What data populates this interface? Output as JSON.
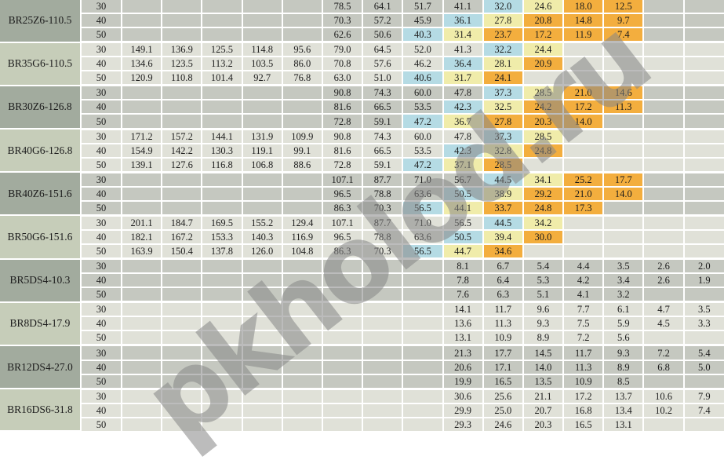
{
  "watermark": "pkholod.ru",
  "colors": {
    "row_dark": "#c5c8c0",
    "row_light": "#e0e1d8",
    "model_dark": "#a2ab9e",
    "model_light": "#c6cdb9",
    "cell_blue": "#b5dbe4",
    "cell_yellow": "#f0ecaa",
    "cell_orange": "#f3ae3e",
    "border": "#ffffff",
    "text": "#1c1c1c",
    "watermark_color": "#878787"
  },
  "table": {
    "num_data_columns": 15,
    "temp_values": [
      "30",
      "40",
      "50"
    ],
    "groups": [
      {
        "model": "BR25Z6-110.5",
        "shade": "dark",
        "rows": [
          {
            "temp": "30",
            "cells": {
              "6": "78.5",
              "7": "64.1",
              "8": "51.7",
              "9": "41.1",
              "10": "32.0",
              "11": "24.6",
              "12": "18.0",
              "13": "12.5"
            },
            "colors": {
              "10": "blue",
              "11": "yellow",
              "12": "orange",
              "13": "orange"
            }
          },
          {
            "temp": "40",
            "cells": {
              "6": "70.3",
              "7": "57.2",
              "8": "45.9",
              "9": "36.1",
              "10": "27.8",
              "11": "20.8",
              "12": "14.8",
              "13": "9.7"
            },
            "colors": {
              "9": "blue",
              "10": "yellow",
              "11": "orange",
              "12": "orange",
              "13": "orange"
            }
          },
          {
            "temp": "50",
            "cells": {
              "6": "62.6",
              "7": "50.6",
              "8": "40.3",
              "9": "31.4",
              "10": "23.7",
              "11": "17.2",
              "12": "11.9",
              "13": "7.4"
            },
            "colors": {
              "8": "blue",
              "9": "yellow",
              "10": "orange",
              "11": "orange",
              "12": "orange",
              "13": "orange"
            }
          }
        ]
      },
      {
        "model": "BR35G6-110.5",
        "shade": "light",
        "rows": [
          {
            "temp": "30",
            "cells": {
              "1": "149.1",
              "2": "136.9",
              "3": "125.5",
              "4": "114.8",
              "5": "95.6",
              "6": "79.0",
              "7": "64.5",
              "8": "52.0",
              "9": "41.3",
              "10": "32.2",
              "11": "24.4"
            },
            "colors": {
              "10": "blue",
              "11": "yellow"
            }
          },
          {
            "temp": "40",
            "cells": {
              "1": "134.6",
              "2": "123.5",
              "3": "113.2",
              "4": "103.5",
              "5": "86.0",
              "6": "70.8",
              "7": "57.6",
              "8": "46.2",
              "9": "36.4",
              "10": "28.1",
              "11": "20.9"
            },
            "colors": {
              "9": "blue",
              "10": "yellow",
              "11": "orange"
            }
          },
          {
            "temp": "50",
            "cells": {
              "1": "120.9",
              "2": "110.8",
              "3": "101.4",
              "4": "92.7",
              "5": "76.8",
              "6": "63.0",
              "7": "51.0",
              "8": "40.6",
              "9": "31.7",
              "10": "24.1"
            },
            "colors": {
              "8": "blue",
              "9": "yellow",
              "10": "orange"
            }
          }
        ]
      },
      {
        "model": "BR30Z6-126.8",
        "shade": "dark",
        "rows": [
          {
            "temp": "30",
            "cells": {
              "6": "90.8",
              "7": "74.3",
              "8": "60.0",
              "9": "47.8",
              "10": "37.3",
              "11": "28.5",
              "12": "21.0",
              "13": "14.6"
            },
            "colors": {
              "10": "blue",
              "11": "yellow",
              "12": "orange",
              "13": "orange"
            }
          },
          {
            "temp": "40",
            "cells": {
              "6": "81.6",
              "7": "66.5",
              "8": "53.5",
              "9": "42.3",
              "10": "32.5",
              "11": "24.2",
              "12": "17.2",
              "13": "11.3"
            },
            "colors": {
              "9": "blue",
              "10": "yellow",
              "11": "orange",
              "12": "orange",
              "13": "orange"
            }
          },
          {
            "temp": "50",
            "cells": {
              "6": "72.8",
              "7": "59.1",
              "8": "47.2",
              "9": "36.7",
              "10": "27.8",
              "11": "20.3",
              "12": "14.0"
            },
            "colors": {
              "8": "blue",
              "9": "yellow",
              "10": "orange",
              "11": "orange",
              "12": "orange"
            }
          }
        ]
      },
      {
        "model": "BR40G6-126.8",
        "shade": "light",
        "rows": [
          {
            "temp": "30",
            "cells": {
              "1": "171.2",
              "2": "157.2",
              "3": "144.1",
              "4": "131.9",
              "5": "109.9",
              "6": "90.8",
              "7": "74.3",
              "8": "60.0",
              "9": "47.8",
              "10": "37.3",
              "11": "28.5"
            },
            "colors": {
              "10": "blue",
              "11": "yellow"
            }
          },
          {
            "temp": "40",
            "cells": {
              "1": "154.9",
              "2": "142.2",
              "3": "130.3",
              "4": "119.1",
              "5": "99.1",
              "6": "81.6",
              "7": "66.5",
              "8": "53.5",
              "9": "42.3",
              "10": "32.8",
              "11": "24.8"
            },
            "colors": {
              "9": "blue",
              "10": "yellow",
              "11": "orange"
            }
          },
          {
            "temp": "50",
            "cells": {
              "1": "139.1",
              "2": "127.6",
              "3": "116.8",
              "4": "106.8",
              "5": "88.6",
              "6": "72.8",
              "7": "59.1",
              "8": "47.2",
              "9": "37.1",
              "10": "28.5"
            },
            "colors": {
              "8": "blue",
              "9": "yellow",
              "10": "orange"
            }
          }
        ]
      },
      {
        "model": "BR40Z6-151.6",
        "shade": "dark",
        "rows": [
          {
            "temp": "30",
            "cells": {
              "6": "107.1",
              "7": "87.7",
              "8": "71.0",
              "9": "56.7",
              "10": "44.5",
              "11": "34.1",
              "12": "25.2",
              "13": "17.7"
            },
            "colors": {
              "10": "blue",
              "11": "yellow",
              "12": "orange",
              "13": "orange"
            }
          },
          {
            "temp": "40",
            "cells": {
              "6": "96.5",
              "7": "78.8",
              "8": "63.6",
              "9": "50.5",
              "10": "38.9",
              "11": "29.2",
              "12": "21.0",
              "13": "14.0"
            },
            "colors": {
              "9": "blue",
              "10": "yellow",
              "11": "orange",
              "12": "orange",
              "13": "orange"
            }
          },
          {
            "temp": "50",
            "cells": {
              "6": "86.3",
              "7": "70.3",
              "8": "56.5",
              "9": "44.1",
              "10": "33.7",
              "11": "24.8",
              "12": "17.3"
            },
            "colors": {
              "8": "blue",
              "9": "yellow",
              "10": "orange",
              "11": "orange",
              "12": "orange"
            }
          }
        ]
      },
      {
        "model": "BR50G6-151.6",
        "shade": "light",
        "rows": [
          {
            "temp": "30",
            "cells": {
              "1": "201.1",
              "2": "184.7",
              "3": "169.5",
              "4": "155.2",
              "5": "129.4",
              "6": "107.1",
              "7": "87.7",
              "8": "71.0",
              "9": "56.5",
              "10": "44.5",
              "11": "34.2"
            },
            "colors": {
              "10": "blue",
              "11": "yellow"
            }
          },
          {
            "temp": "40",
            "cells": {
              "1": "182.1",
              "2": "167.2",
              "3": "153.3",
              "4": "140.3",
              "5": "116.9",
              "6": "96.5",
              "7": "78.8",
              "8": "63.6",
              "9": "50.5",
              "10": "39.4",
              "11": "30.0"
            },
            "colors": {
              "9": "blue",
              "10": "yellow",
              "11": "orange"
            }
          },
          {
            "temp": "50",
            "cells": {
              "1": "163.9",
              "2": "150.4",
              "3": "137.8",
              "4": "126.0",
              "5": "104.8",
              "6": "86.3",
              "7": "70.3",
              "8": "56.5",
              "9": "44.7",
              "10": "34.6"
            },
            "colors": {
              "8": "blue",
              "9": "yellow",
              "10": "orange"
            }
          }
        ]
      },
      {
        "model": "BR5DS4-10.3",
        "shade": "dark",
        "rows": [
          {
            "temp": "30",
            "cells": {
              "9": "8.1",
              "10": "6.7",
              "11": "5.4",
              "12": "4.4",
              "13": "3.5",
              "14": "2.6",
              "15": "2.0"
            },
            "colors": {}
          },
          {
            "temp": "40",
            "cells": {
              "9": "7.8",
              "10": "6.4",
              "11": "5.3",
              "12": "4.2",
              "13": "3.4",
              "14": "2.6",
              "15": "1.9"
            },
            "colors": {}
          },
          {
            "temp": "50",
            "cells": {
              "9": "7.6",
              "10": "6.3",
              "11": "5.1",
              "12": "4.1",
              "13": "3.2"
            },
            "colors": {}
          }
        ]
      },
      {
        "model": "BR8DS4-17.9",
        "shade": "light",
        "rows": [
          {
            "temp": "30",
            "cells": {
              "9": "14.1",
              "10": "11.7",
              "11": "9.6",
              "12": "7.7",
              "13": "6.1",
              "14": "4.7",
              "15": "3.5"
            },
            "colors": {}
          },
          {
            "temp": "40",
            "cells": {
              "9": "13.6",
              "10": "11.3",
              "11": "9.3",
              "12": "7.5",
              "13": "5.9",
              "14": "4.5",
              "15": "3.3"
            },
            "colors": {}
          },
          {
            "temp": "50",
            "cells": {
              "9": "13.1",
              "10": "10.9",
              "11": "8.9",
              "12": "7.2",
              "13": "5.6"
            },
            "colors": {}
          }
        ]
      },
      {
        "model": "BR12DS4-27.0",
        "shade": "dark",
        "rows": [
          {
            "temp": "30",
            "cells": {
              "9": "21.3",
              "10": "17.7",
              "11": "14.5",
              "12": "11.7",
              "13": "9.3",
              "14": "7.2",
              "15": "5.4"
            },
            "colors": {}
          },
          {
            "temp": "40",
            "cells": {
              "9": "20.6",
              "10": "17.1",
              "11": "14.0",
              "12": "11.3",
              "13": "8.9",
              "14": "6.8",
              "15": "5.0"
            },
            "colors": {}
          },
          {
            "temp": "50",
            "cells": {
              "9": "19.9",
              "10": "16.5",
              "11": "13.5",
              "12": "10.9",
              "13": "8.5"
            },
            "colors": {}
          }
        ]
      },
      {
        "model": "BR16DS6-31.8",
        "shade": "light",
        "rows": [
          {
            "temp": "30",
            "cells": {
              "9": "30.6",
              "10": "25.6",
              "11": "21.1",
              "12": "17.2",
              "13": "13.7",
              "14": "10.6",
              "15": "7.9"
            },
            "colors": {}
          },
          {
            "temp": "40",
            "cells": {
              "9": "29.9",
              "10": "25.0",
              "11": "20.7",
              "12": "16.8",
              "13": "13.4",
              "14": "10.2",
              "15": "7.4"
            },
            "colors": {}
          },
          {
            "temp": "50",
            "cells": {
              "9": "29.3",
              "10": "24.6",
              "11": "20.3",
              "12": "16.5",
              "13": "13.1"
            },
            "colors": {}
          }
        ]
      }
    ]
  }
}
